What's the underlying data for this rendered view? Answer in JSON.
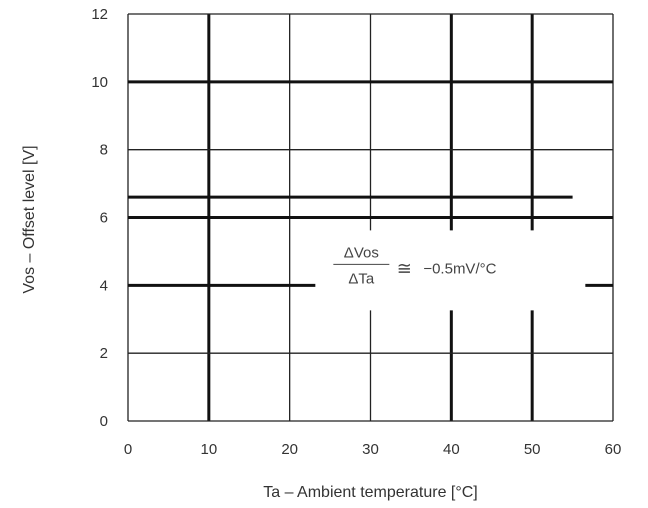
{
  "chart_data": {
    "type": "line",
    "xlabel": "Ta – Ambient temperature [°C]",
    "ylabel": "Vos – Offset level [V]",
    "xlim": [
      0,
      60
    ],
    "ylim": [
      0,
      12
    ],
    "x_ticks": [
      "0",
      "10",
      "20",
      "30",
      "40",
      "50",
      "60"
    ],
    "y_ticks": [
      "0",
      "2",
      "4",
      "6",
      "8",
      "10",
      "12"
    ],
    "grid": true,
    "series": [
      {
        "x": [
          0,
          55
        ],
        "y": [
          6.6,
          6.6
        ]
      }
    ],
    "annotation": {
      "numerator": "ΔVos",
      "denominator": "ΔTa",
      "approx": "≅",
      "value": "−0.5mV/°C",
      "x": 40,
      "y": 4.5
    },
    "colors": {
      "grid_major": "#111111",
      "grid_minor": "#222222",
      "line": "#111111"
    }
  }
}
